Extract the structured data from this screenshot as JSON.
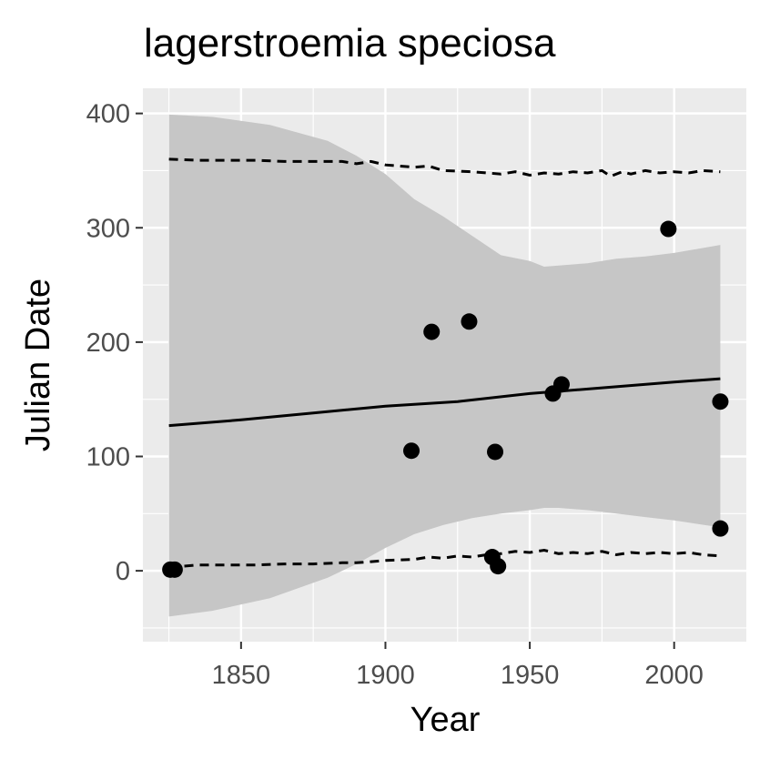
{
  "chart_data": {
    "type": "scatter",
    "title": "lagerstroemia speciosa",
    "xlabel": "Year",
    "ylabel": "Julian Date",
    "xlim": [
      1816,
      2025
    ],
    "ylim": [
      -62,
      422
    ],
    "x_ticks": [
      1850,
      1900,
      1950,
      2000
    ],
    "x_tick_labels": [
      "1850",
      "1900",
      "1950",
      "2000"
    ],
    "y_ticks": [
      0,
      100,
      200,
      300,
      400
    ],
    "y_tick_labels": [
      "0",
      "100",
      "200",
      "300",
      "400"
    ],
    "grid": true,
    "legend": "none",
    "colors": {
      "panel": "#ebebeb",
      "grid": "#ffffff",
      "ribbon": "#c6c6c6",
      "points": "#000000",
      "line": "#000000",
      "tick_text": "#4d4d4d"
    },
    "points": {
      "x": [
        1825.5,
        1827,
        1909,
        1916,
        1929,
        1937,
        1938,
        1939,
        1958,
        1961,
        1998,
        2016,
        2016
      ],
      "y": [
        1,
        1,
        105,
        209,
        218,
        12,
        104,
        4,
        155,
        163,
        299,
        148,
        37
      ]
    },
    "trend_line": {
      "x": [
        1825,
        1850,
        1875,
        1900,
        1925,
        1950,
        1975,
        2000,
        2016
      ],
      "y": [
        127,
        132,
        138,
        144,
        148,
        155,
        160,
        165,
        168
      ]
    },
    "confidence_ribbon": {
      "x": [
        1825,
        1840,
        1860,
        1880,
        1890,
        1900,
        1910,
        1920,
        1930,
        1940,
        1950,
        1955,
        1960,
        1970,
        1980,
        1990,
        2000,
        2016
      ],
      "upper": [
        399,
        397,
        390,
        376,
        363,
        347,
        325,
        310,
        293,
        276,
        271,
        266,
        267,
        269,
        273,
        275,
        278,
        285
      ],
      "lower": [
        -40,
        -35,
        -24,
        -6,
        6,
        20,
        32,
        40,
        46,
        50,
        53,
        55,
        55,
        53,
        50,
        47,
        44,
        38
      ]
    },
    "upper_dashed": {
      "x": [
        1825,
        1835,
        1845,
        1855,
        1865,
        1875,
        1885,
        1890,
        1895,
        1900,
        1910,
        1915,
        1920,
        1930,
        1940,
        1945,
        1950,
        1955,
        1960,
        1965,
        1970,
        1975,
        1978,
        1982,
        1985,
        1990,
        1995,
        2000,
        2005,
        2010,
        2016
      ],
      "y": [
        360,
        359,
        359,
        359,
        358,
        358,
        358,
        356,
        358,
        355,
        353,
        354,
        350,
        349,
        347,
        349,
        346,
        348,
        347,
        349,
        348,
        350,
        345,
        349,
        347,
        350,
        348,
        349,
        348,
        350,
        349
      ]
    },
    "lower_dashed": {
      "x": [
        1825,
        1835,
        1845,
        1855,
        1865,
        1875,
        1885,
        1890,
        1895,
        1900,
        1910,
        1915,
        1920,
        1925,
        1930,
        1935,
        1940,
        1945,
        1950,
        1955,
        1960,
        1965,
        1970,
        1975,
        1980,
        1985,
        1990,
        1995,
        2000,
        2005,
        2010,
        2016
      ],
      "y": [
        3,
        5,
        5,
        5,
        6,
        6,
        7,
        7,
        8,
        9,
        10,
        12,
        11,
        13,
        12,
        14,
        15,
        17,
        16,
        18,
        15,
        16,
        15,
        17,
        14,
        16,
        15,
        16,
        15,
        16,
        14,
        13
      ]
    }
  }
}
